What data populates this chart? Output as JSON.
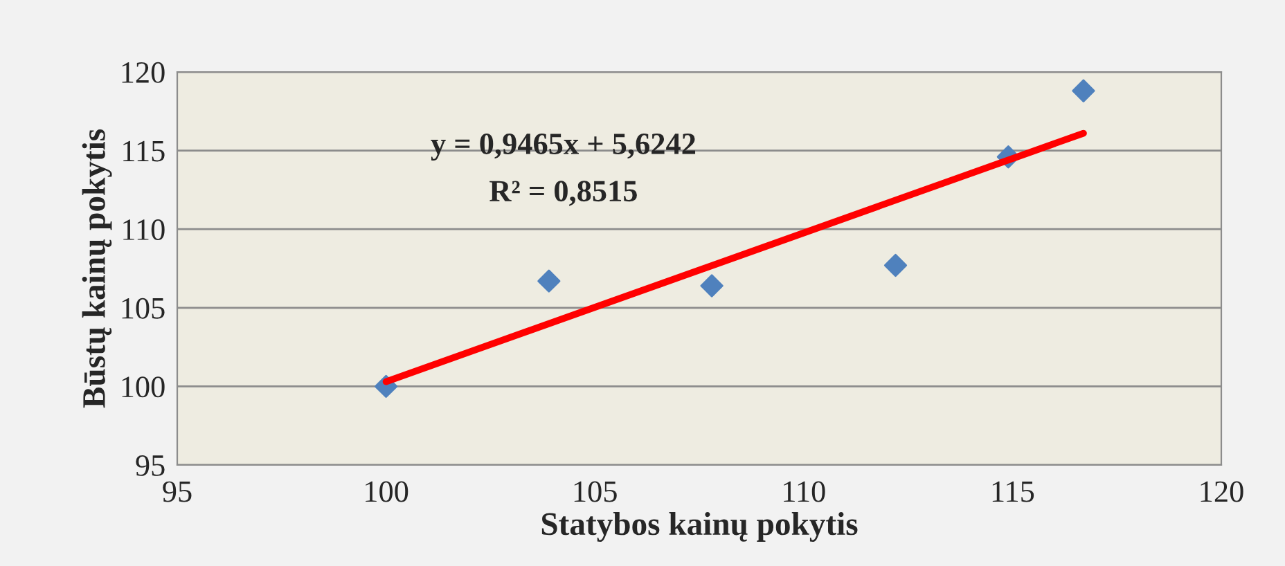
{
  "chart_data": {
    "type": "scatter",
    "xlabel": "Statybos kainų pokytis",
    "ylabel": "Būstų kainų pokytis",
    "xlim": [
      95,
      120
    ],
    "xticks": [
      95,
      100,
      105,
      110,
      115,
      120
    ],
    "ylim": [
      95,
      120
    ],
    "yticks": [
      95,
      100,
      105,
      110,
      115,
      120
    ],
    "grid": "y",
    "legend": false,
    "annotations": [
      "y = 0,9465x + 5,6242",
      "R² = 0,8515"
    ],
    "series": [
      {
        "marker": "diamond",
        "color": "#4f81bd",
        "x": [
          100,
          103.9,
          107.8,
          112.2,
          114.9,
          116.7
        ],
        "values": [
          100,
          106.7,
          106.4,
          107.7,
          114.6,
          118.8
        ]
      },
      {
        "type": "line",
        "color": "#ff0000",
        "x": [
          100,
          116.7
        ],
        "values": [
          100.3,
          116.1
        ]
      }
    ]
  }
}
